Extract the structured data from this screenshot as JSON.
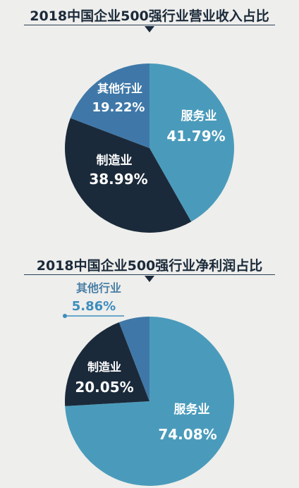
{
  "chart_data": [
    {
      "type": "pie",
      "title": "2018中国企业500强行业营业收入占比",
      "categories": [
        "服务业",
        "制造业",
        "其他行业"
      ],
      "values": [
        41.79,
        38.99,
        19.22
      ],
      "value_labels": [
        "41.79%",
        "38.99%",
        "19.22%"
      ],
      "colors": [
        "#4a9bbb",
        "#1b2a3a",
        "#3f78a8"
      ]
    },
    {
      "type": "pie",
      "title": "2018中国企业500强行业净利润占比",
      "categories": [
        "服务业",
        "制造业",
        "其他行业"
      ],
      "values": [
        74.08,
        20.05,
        5.86
      ],
      "value_labels": [
        "74.08%",
        "20.05%",
        "5.86%"
      ],
      "colors": [
        "#4a9bbb",
        "#1b2a3a",
        "#3f78a8"
      ]
    }
  ]
}
